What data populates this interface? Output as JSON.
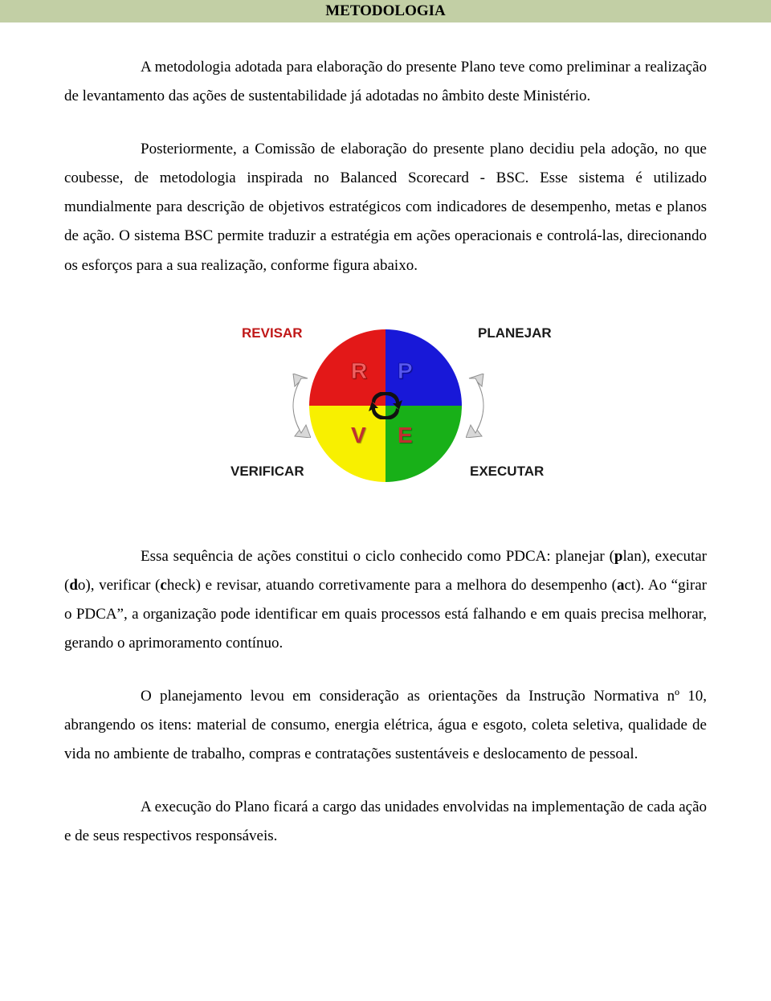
{
  "heading": "METODOLOGIA",
  "paragraphs": {
    "p1": "A metodologia adotada para elaboração do presente Plano teve como preliminar a realização de levantamento das ações de sustentabilidade já adotadas no âmbito deste Ministério.",
    "p2": "Posteriormente, a Comissão de elaboração do presente plano decidiu pela adoção, no que coubesse, de metodologia inspirada no Balanced Scorecard - BSC. Esse sistema é utilizado mundialmente para descrição de objetivos estratégicos com indicadores de desempenho, metas e planos de ação. O sistema BSC permite traduzir a estratégia em ações operacionais e controlá-las, direcionando os esforços para a sua realização, conforme figura abaixo.",
    "p3_html": "Essa sequência de ações constitui o ciclo conhecido como PDCA: planejar (<b>p</b>lan), executar (<b>d</b>o), verificar (<b>c</b>heck) e revisar, atuando corretivamente para a melhora do desempenho (<b>a</b>ct). Ao “girar o PDCA”, a organização pode identificar em quais processos está falhando e em quais precisa melhorar, gerando o aprimoramento contínuo.",
    "p4": "O planejamento levou em consideração as orientações da Instrução Normativa nº 10, abrangendo os itens: material de consumo, energia elétrica, água e esgoto, coleta seletiva, qualidade de vida no ambiente de trabalho, compras e contratações sustentáveis e deslocamento de pessoal.",
    "p5": "A execução do Plano ficará a cargo das unidades envolvidas na implementação de cada ação e de seus respectivos responsáveis."
  },
  "diagram": {
    "type": "pdca-cycle",
    "quadrants": [
      {
        "pos": "top-left",
        "letter": "R",
        "color": "#e31818",
        "label": "REVISAR",
        "label_color": "#c01818"
      },
      {
        "pos": "top-right",
        "letter": "P",
        "color": "#1818d8",
        "label": "PLANEJAR",
        "label_color": "#1a1a1a"
      },
      {
        "pos": "bottom-left",
        "letter": "V",
        "color": "#f8f000",
        "label": "VERIFICAR",
        "label_color": "#1a1a1a"
      },
      {
        "pos": "bottom-right",
        "letter": "E",
        "color": "#18b018",
        "label": "EXECUTAR",
        "label_color": "#1a1a1a"
      }
    ],
    "labels": {
      "revisar": "REVISAR",
      "planejar": "PLANEJAR",
      "verificar": "VERIFICAR",
      "executar": "EXECUTAR",
      "letter_r": "R",
      "letter_p": "P",
      "letter_v": "V",
      "letter_e": "E"
    },
    "arrow_color": "#cccccc",
    "arrow_stroke": "#888888",
    "center_arrow_color": "#111111",
    "background_color": "#ffffff",
    "letter_fontsize": 28,
    "label_fontsize": 17
  }
}
